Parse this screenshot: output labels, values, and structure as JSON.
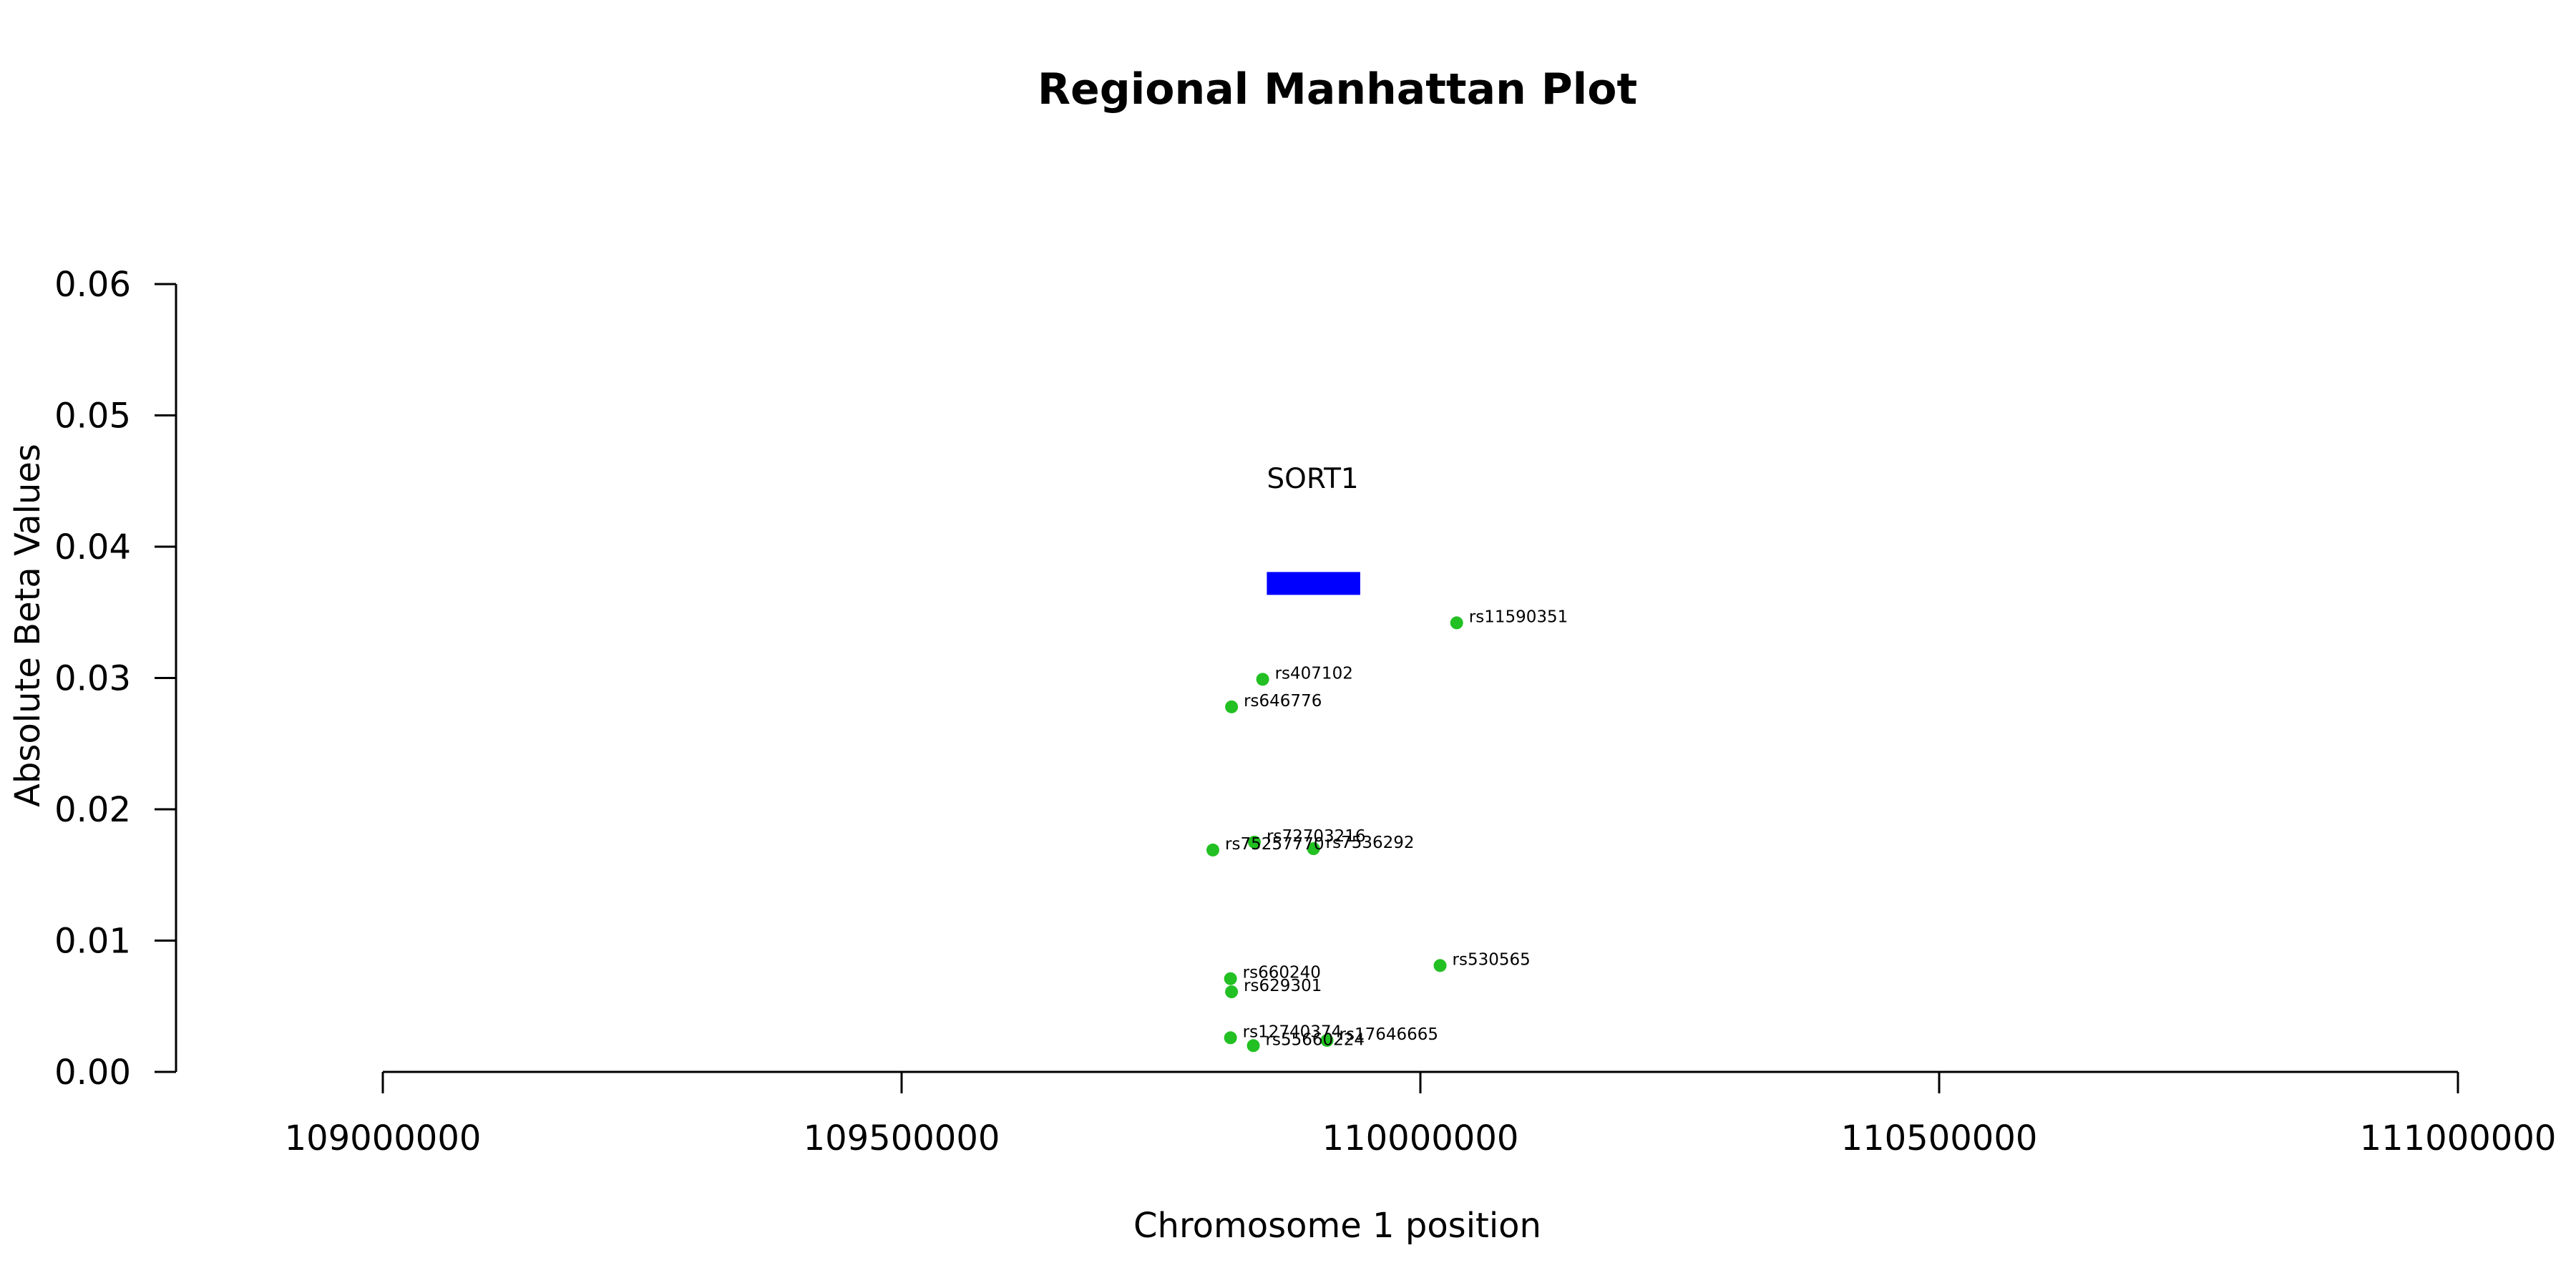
{
  "chart_data": {
    "type": "scatter",
    "title": "Regional Manhattan Plot",
    "xlabel": "Chromosome 1 position",
    "ylabel": "Absolute Beta Values",
    "xlim": [
      108800000,
      111100000
    ],
    "ylim": [
      0,
      0.06
    ],
    "x_ticks": [
      109000000,
      109500000,
      110000000,
      110500000,
      111000000
    ],
    "x_tick_labels": [
      "109000000",
      "109500000",
      "110000000",
      "110500000",
      "111000000"
    ],
    "y_ticks": [
      0,
      0.01,
      0.02,
      0.03,
      0.04,
      0.05,
      0.06
    ],
    "y_tick_labels": [
      "0.00",
      "0.01",
      "0.02",
      "0.03",
      "0.04",
      "0.05",
      "0.06"
    ],
    "grid": false,
    "point_color": "#22c022",
    "gene": {
      "name": "SORT1",
      "start": 109852000,
      "end": 109942000,
      "y": 0.0372,
      "color": "#0000ff"
    },
    "points": [
      {
        "label": "rs11590351",
        "x": 110035000,
        "y": 0.0342
      },
      {
        "label": "rs407102",
        "x": 109848000,
        "y": 0.0299
      },
      {
        "label": "rs646776",
        "x": 109818000,
        "y": 0.0278
      },
      {
        "label": "rs72703216",
        "x": 109840000,
        "y": 0.0175
      },
      {
        "label": "rs7536292",
        "x": 109897000,
        "y": 0.017
      },
      {
        "label": "rs75257770",
        "x": 109800000,
        "y": 0.0169
      },
      {
        "label": "rs530565",
        "x": 110019000,
        "y": 0.0081
      },
      {
        "label": "rs660240",
        "x": 109817000,
        "y": 0.0071
      },
      {
        "label": "rs629301",
        "x": 109818000,
        "y": 0.0061
      },
      {
        "label": "rs12740374",
        "x": 109817000,
        "y": 0.0026
      },
      {
        "label": "rs17646665",
        "x": 109910000,
        "y": 0.0024
      },
      {
        "label": "rs55660224",
        "x": 109839000,
        "y": 0.002
      }
    ]
  }
}
